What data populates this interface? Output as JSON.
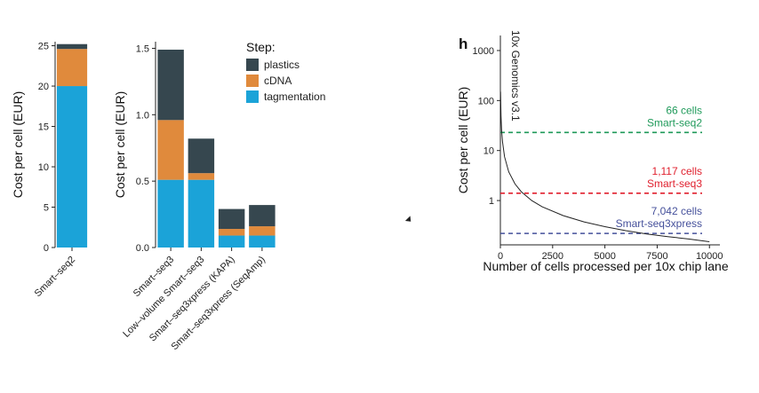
{
  "chart_data": [
    {
      "type": "bar",
      "stacked": true,
      "ylabel": "Cost per cell (EUR)",
      "xlabel": "",
      "categories": [
        "Smart–seq2"
      ],
      "ylim": [
        0,
        25.5
      ],
      "yticks": [
        0,
        5,
        10,
        15,
        20,
        25
      ],
      "ytick_labels": [
        "0",
        "5",
        "10",
        "15",
        "20",
        "25"
      ],
      "series": [
        {
          "name": "tagmentation",
          "color": "#1ba3d8",
          "values": [
            20.0
          ]
        },
        {
          "name": "cDNA",
          "color": "#e08a3c",
          "values": [
            4.6
          ]
        },
        {
          "name": "plastics",
          "color": "#36474f",
          "values": [
            0.6
          ]
        }
      ]
    },
    {
      "type": "bar",
      "stacked": true,
      "ylabel": "Cost per cell (EUR)",
      "xlabel": "",
      "categories": [
        "Smart–seq3",
        "Low–volume Smart–seq3",
        "Smart–seq3xpress (KAPA)",
        "Smart–seq3xpress (SeqAmp)"
      ],
      "ylim": [
        0,
        1.55
      ],
      "yticks": [
        0,
        0.5,
        1.0,
        1.5
      ],
      "ytick_labels": [
        "0.0",
        "0.5",
        "1.0",
        "1.5"
      ],
      "legend_title": "Step:",
      "legend_position": "top-right",
      "series": [
        {
          "name": "plastics",
          "color": "#36474f",
          "values": [
            0.53,
            0.26,
            0.15,
            0.16
          ]
        },
        {
          "name": "cDNA",
          "color": "#e08a3c",
          "values": [
            0.45,
            0.05,
            0.05,
            0.07
          ]
        },
        {
          "name": "tagmentation",
          "color": "#1ba3d8",
          "values": [
            0.51,
            0.51,
            0.09,
            0.09
          ]
        }
      ]
    },
    {
      "type": "line",
      "panel_label": "h",
      "xlabel": "Number of cells processed per 10x chip lane",
      "ylabel": "Cost per cell (EUR)",
      "xlim": [
        0,
        10500
      ],
      "xticks": [
        0,
        2500,
        5000,
        7500,
        10000
      ],
      "ylog": true,
      "ylim": [
        0.13,
        2000
      ],
      "yticks": [
        1,
        10,
        100,
        1000
      ],
      "ytick_labels": [
        "1",
        "10",
        "100",
        "1000"
      ],
      "curve_label": "10x Genomics v3.1",
      "curve": {
        "x": [
          10,
          30,
          60,
          100,
          200,
          400,
          700,
          1000,
          1500,
          2000,
          3000,
          4000,
          5000,
          6000,
          7000,
          8000,
          9000,
          10000
        ],
        "y": [
          150,
          50,
          25,
          15,
          7.5,
          3.75,
          2.14,
          1.5,
          1.0,
          0.75,
          0.5,
          0.375,
          0.3,
          0.25,
          0.214,
          0.19,
          0.17,
          0.15
        ]
      },
      "reference_lines": [
        {
          "y": 23,
          "color": "#1f9a5a",
          "count_label": "66 cells",
          "name_label": "Smart-seq2"
        },
        {
          "y": 1.4,
          "color": "#e0202e",
          "count_label": "1,117 cells",
          "name_label": "Smart-seq3"
        },
        {
          "y": 0.22,
          "color": "#45509b",
          "count_label": "7,042 cells",
          "name_label": "Smart-seq3xpress"
        }
      ]
    }
  ]
}
